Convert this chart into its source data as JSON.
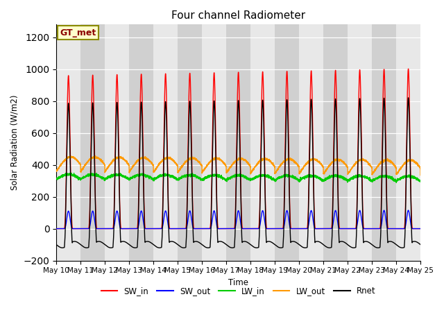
{
  "title": "Four channel Radiometer",
  "ylabel": "Solar Radiation (W/m2)",
  "xlabel": "Time",
  "ylim": [
    -200,
    1280
  ],
  "yticks": [
    -200,
    0,
    200,
    400,
    600,
    800,
    1000,
    1200
  ],
  "annotation": "GT_met",
  "plot_bg_color": "#d8d8d8",
  "fig_bg_color": "#ffffff",
  "legend": [
    {
      "label": "SW_in",
      "color": "#ff0000"
    },
    {
      "label": "SW_out",
      "color": "#0000ff"
    },
    {
      "label": "LW_in",
      "color": "#00cc00"
    },
    {
      "label": "LW_out",
      "color": "#ff9900"
    },
    {
      "label": "Rnet",
      "color": "#000000"
    }
  ],
  "x_tick_labels": [
    "May 10",
    "May 11",
    "May 12",
    "May 13",
    "May 14",
    "May 15",
    "May 16",
    "May 17",
    "May 18",
    "May 19",
    "May 20",
    "May 21",
    "May 22",
    "May 23",
    "May 24",
    "May 25"
  ],
  "n_days": 15,
  "pts_per_day": 288
}
